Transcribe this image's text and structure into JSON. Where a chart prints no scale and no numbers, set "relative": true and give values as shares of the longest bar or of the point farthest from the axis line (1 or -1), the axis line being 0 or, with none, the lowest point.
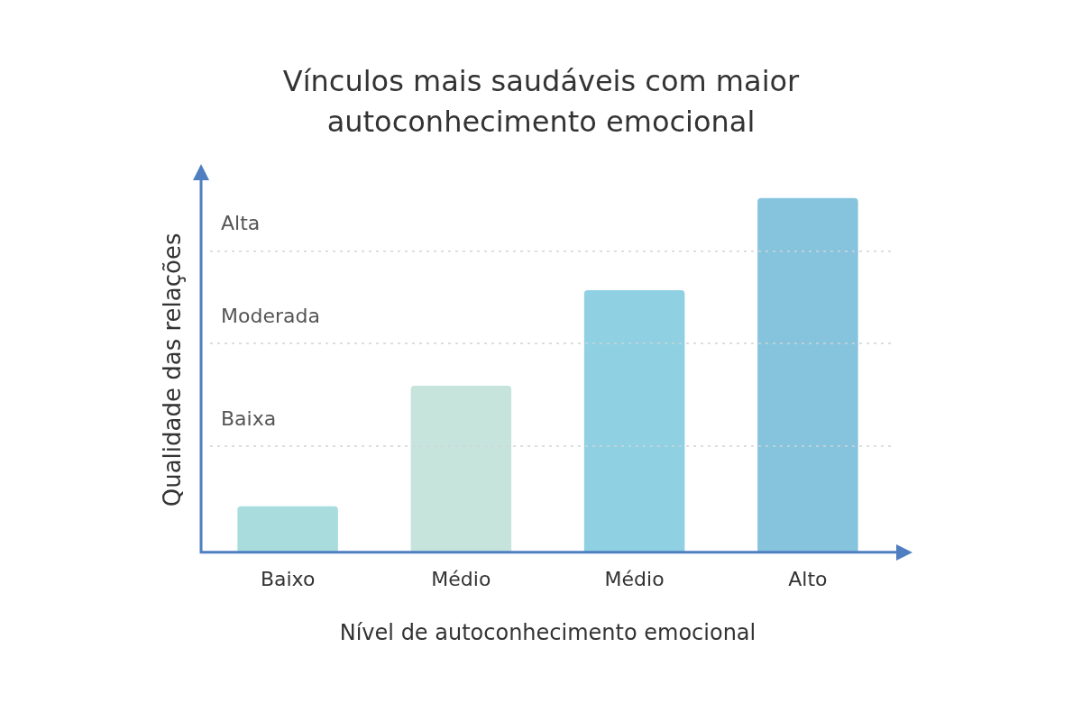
{
  "chart_data": {
    "type": "bar",
    "title": "Vínculos mais saudáveis com maior autoconhecimento emocional",
    "xlabel": "Nível de autoconhecimento emocional",
    "ylabel": "Qualidade das relações",
    "categories": [
      "Baixo",
      "Médio",
      "Médio",
      "Alto"
    ],
    "values": [
      0.13,
      0.47,
      0.74,
      1
    ],
    "colors": [
      "#a9dcdc",
      "#c6e4dc",
      "#8fd0e2",
      "#86c4de"
    ],
    "relative": true,
    "legend": false,
    "ref_lines": [
      {
        "axis": "y",
        "value": 0.3,
        "label": "Baixa",
        "line_style": "dotted",
        "color": "#d0d4d8"
      },
      {
        "axis": "y",
        "value": 0.59,
        "label": "Moderada",
        "line_style": "dotted",
        "color": "#d0d4d8"
      },
      {
        "axis": "y",
        "value": 0.85,
        "label": "Alta",
        "line_style": "dotted",
        "color": "#d0d4d8"
      }
    ]
  }
}
